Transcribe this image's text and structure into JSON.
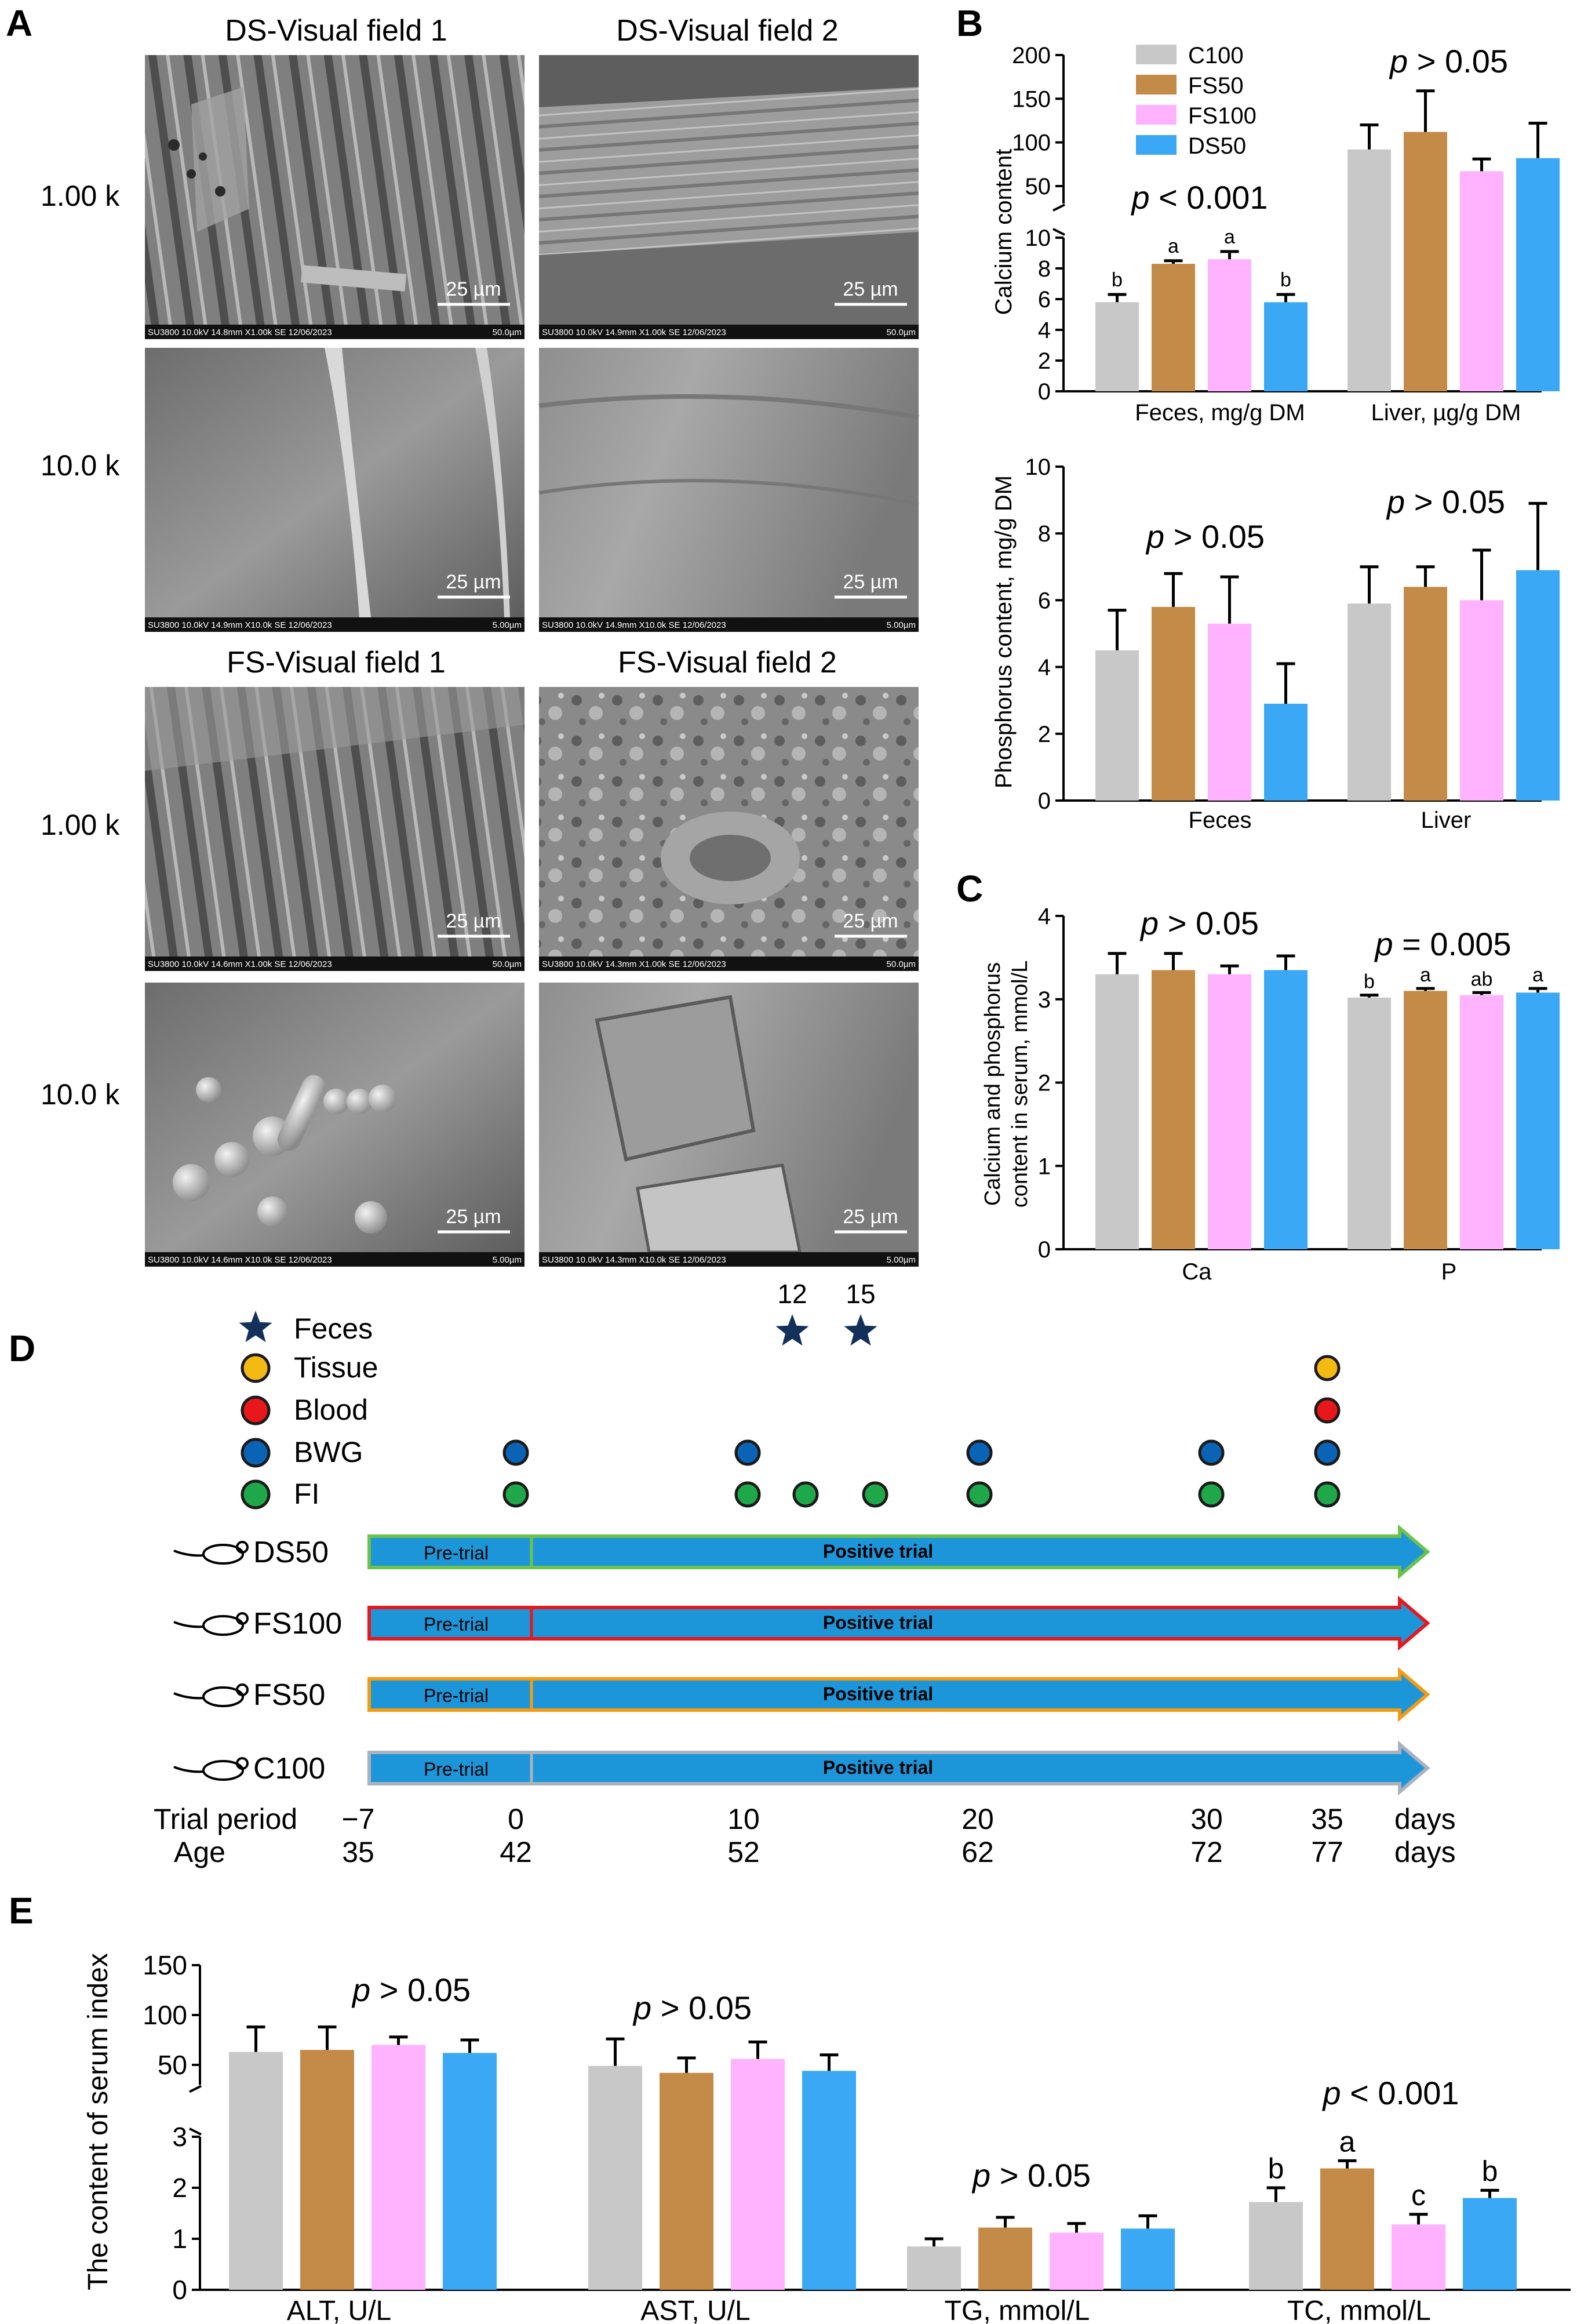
{
  "panel_labels": {
    "a": "A",
    "b": "B",
    "c": "C",
    "d": "D",
    "e": "E"
  },
  "colors": {
    "C100": "#c8c8c8",
    "FS50": "#c48a47",
    "FS100": "#ffb3ff",
    "DS50": "#3aa8f5"
  },
  "sem": {
    "headers": {
      "ds1": "DS-Visual field 1",
      "ds2": "DS-Visual field 2",
      "fs1": "FS-Visual field 1",
      "fs2": "FS-Visual field 2"
    },
    "row_labels": {
      "r1": "1.00 k",
      "r2": "10.0 k",
      "r3": "1.00 k",
      "r4": "10.0 k"
    },
    "scale_bar": "25 µm",
    "meta": {
      "ds1_1k": "SU3800 10.0kV 14.8mm X1.00k SE 12/06/2023",
      "ds2_1k": "SU3800 10.0kV 14.9mm X1.00k SE 12/06/2023",
      "ds1_10k": "SU3800 10.0kV 14.9mm X10.0k SE 12/06/2023",
      "ds2_10k": "SU3800 10.0kV 14.9mm X10.0k SE 12/06/2023",
      "fs1_1k": "SU3800 10.0kV 14.6mm X1.00k SE 12/06/2023",
      "fs2_1k": "SU3800 10.0kV 14.3mm X1.00k SE 12/06/2023",
      "fs1_10k": "SU3800 10.0kV 14.6mm X10.0k SE 12/06/2023",
      "fs2_10k": "SU3800 10.0kV 14.3mm X10.0k SE 12/06/2023",
      "fov_1k": "50.0µm",
      "fov_10k": "5.00µm"
    }
  },
  "chart_data": [
    {
      "panel": "B-calcium",
      "type": "bar",
      "ylabel": "Calcium content",
      "categories": [
        "Feces, mg/g DM",
        "Liver, µg/g DM"
      ],
      "legend": [
        "C100",
        "FS50",
        "FS100",
        "DS50"
      ],
      "legend_position": "top-left",
      "y_axis_break": {
        "lower": [
          0,
          10
        ],
        "upper": [
          30,
          200
        ]
      },
      "lower_ticks": [
        "0",
        "2",
        "4",
        "6",
        "8",
        "10"
      ],
      "upper_ticks": [
        "50",
        "100",
        "150",
        "200"
      ],
      "series": [
        {
          "name": "C100",
          "values": [
            5.8,
            92
          ],
          "err": [
            0.5,
            28
          ]
        },
        {
          "name": "FS50",
          "values": [
            8.3,
            112
          ],
          "err": [
            0.2,
            47
          ]
        },
        {
          "name": "FS100",
          "values": [
            8.6,
            67
          ],
          "err": [
            0.5,
            14
          ]
        },
        {
          "name": "DS50",
          "values": [
            5.8,
            82
          ],
          "err": [
            0.5,
            40
          ]
        }
      ],
      "letters": [
        [
          "b",
          "a",
          "a",
          "b"
        ],
        [
          "",
          "",
          "",
          ""
        ]
      ],
      "pvalues": [
        "p < 0.001",
        "p > 0.05"
      ]
    },
    {
      "panel": "B-phosphorus",
      "type": "bar",
      "ylabel": "Phosphorus content, mg/g DM",
      "categories": [
        "Feces",
        "Liver"
      ],
      "ylim": [
        0,
        10
      ],
      "yticks": [
        "0",
        "2",
        "4",
        "6",
        "8",
        "10"
      ],
      "series": [
        {
          "name": "C100",
          "values": [
            4.5,
            5.9
          ],
          "err": [
            1.2,
            1.1
          ]
        },
        {
          "name": "FS50",
          "values": [
            5.8,
            6.4
          ],
          "err": [
            1.0,
            0.6
          ]
        },
        {
          "name": "FS100",
          "values": [
            5.3,
            6.0
          ],
          "err": [
            1.4,
            1.5
          ]
        },
        {
          "name": "DS50",
          "values": [
            2.9,
            6.9
          ],
          "err": [
            1.2,
            2.0
          ]
        }
      ],
      "pvalues": [
        "p > 0.05",
        "p > 0.05"
      ]
    },
    {
      "panel": "C",
      "type": "bar",
      "ylabel_lines": [
        "Calcium and phosphorus",
        "content in serum, mmol/L"
      ],
      "categories": [
        "Ca",
        "P"
      ],
      "ylim": [
        0,
        4
      ],
      "yticks": [
        "0",
        "1",
        "2",
        "3",
        "4"
      ],
      "series": [
        {
          "name": "C100",
          "values": [
            3.3,
            3.02
          ],
          "err": [
            0.25,
            0.03
          ]
        },
        {
          "name": "FS50",
          "values": [
            3.35,
            3.1
          ],
          "err": [
            0.2,
            0.03
          ]
        },
        {
          "name": "FS100",
          "values": [
            3.3,
            3.05
          ],
          "err": [
            0.1,
            0.03
          ]
        },
        {
          "name": "DS50",
          "values": [
            3.35,
            3.08
          ],
          "err": [
            0.17,
            0.05
          ]
        }
      ],
      "letters": [
        [
          "",
          "",
          "",
          ""
        ],
        [
          "b",
          "a",
          "ab",
          "a"
        ]
      ],
      "pvalues": [
        "p > 0.05",
        "p = 0.005"
      ]
    },
    {
      "panel": "E",
      "type": "bar",
      "ylabel": "The content of serum index",
      "categories": [
        "ALT, U/L",
        "AST, U/L",
        "TG, mmol/L",
        "TC, mmol/L"
      ],
      "y_axis_break": {
        "lower": [
          0,
          3
        ],
        "upper": [
          30,
          150
        ]
      },
      "lower_ticks": [
        "0",
        "1",
        "2",
        "3"
      ],
      "upper_ticks": [
        "50",
        "100",
        "150"
      ],
      "series": [
        {
          "name": "C100",
          "values": [
            63,
            49,
            0.85,
            1.72
          ],
          "err": [
            25,
            27,
            0.15,
            0.28
          ]
        },
        {
          "name": "FS50",
          "values": [
            65,
            42,
            1.22,
            2.38
          ],
          "err": [
            23,
            15,
            0.2,
            0.15
          ]
        },
        {
          "name": "FS100",
          "values": [
            70,
            56,
            1.12,
            1.28
          ],
          "err": [
            8,
            17,
            0.18,
            0.2
          ]
        },
        {
          "name": "DS50",
          "values": [
            62,
            44,
            1.2,
            1.8
          ],
          "err": [
            13,
            16,
            0.25,
            0.15
          ]
        }
      ],
      "letters": [
        [
          "",
          "",
          "",
          ""
        ],
        [
          "",
          "",
          "",
          ""
        ],
        [
          "",
          "",
          "",
          ""
        ],
        [
          "b",
          "a",
          "c",
          "b"
        ]
      ],
      "pvalues": [
        "p > 0.05",
        "p > 0.05",
        "p > 0.05",
        "p < 0.001"
      ]
    }
  ],
  "timeline": {
    "legend": [
      "Feces",
      "Tissue",
      "Blood",
      "BWG",
      "FI"
    ],
    "legend_colors": {
      "star": "#12305a",
      "Tissue": "#f5b914",
      "Blood": "#e8171c",
      "BWG": "#0b63b5",
      "FI": "#1fa84a"
    },
    "feces_days": [
      "12",
      "15"
    ],
    "groups": [
      {
        "name": "DS50",
        "outline": "#6cc24a"
      },
      {
        "name": "FS100",
        "outline": "#e8171c"
      },
      {
        "name": "FS50",
        "outline": "#f39c12"
      },
      {
        "name": "C100",
        "outline": "#a9b2bd"
      }
    ],
    "arrow_fill": "#1d96d9",
    "pretrial_label": "Pre-trial",
    "trial_label": "Positive trial",
    "trial_period_label": "Trial period",
    "age_label": "Age",
    "trial_days": [
      "−7",
      "0",
      "10",
      "20",
      "30",
      "35"
    ],
    "ages": [
      "35",
      "42",
      "52",
      "62",
      "72",
      "77"
    ],
    "unit": "days",
    "bwg_days": [
      0,
      10,
      20,
      30,
      35
    ],
    "fi_days": [
      0,
      10,
      12.5,
      15.5,
      20,
      30,
      35
    ],
    "tissue_blood_days": [
      35
    ]
  }
}
